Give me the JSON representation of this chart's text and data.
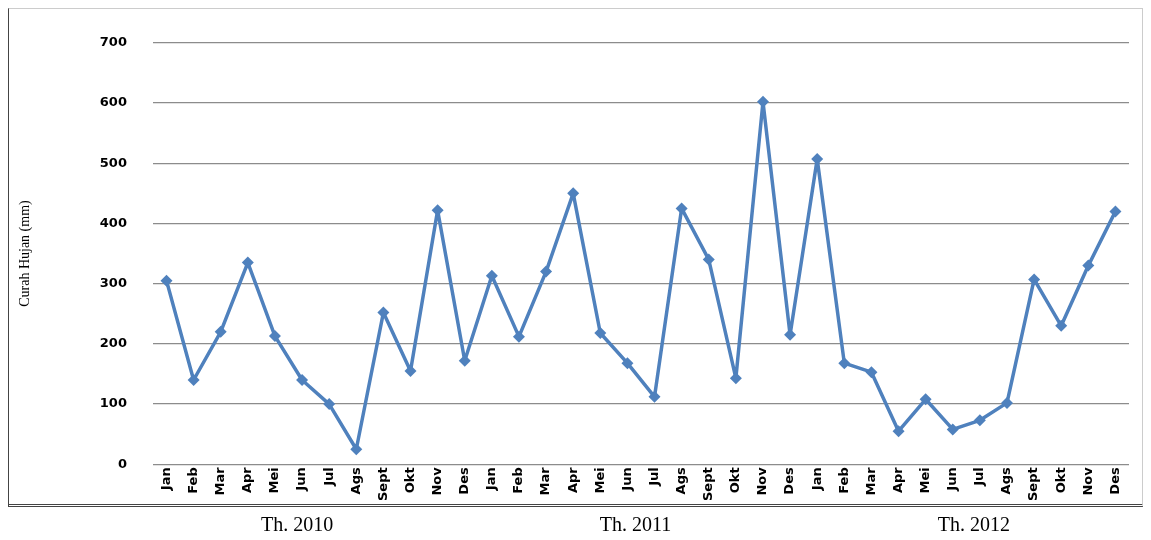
{
  "chart_data": {
    "type": "line",
    "ylabel": "Curah Hujan (mm)",
    "categories": [
      "Jan",
      "Feb",
      "Mar",
      "Apr",
      "Mei",
      "Jun",
      "Jul",
      "Ags",
      "Sept",
      "Okt",
      "Nov",
      "Des",
      "Jan",
      "Feb",
      "Mar",
      "Apr",
      "Mei",
      "Jun",
      "Jul",
      "Ags",
      "Sept",
      "Okt",
      "Nov",
      "Des",
      "Jan",
      "Feb",
      "Mar",
      "Apr",
      "Mei",
      "Jun",
      "Jul",
      "Ags",
      "Sept",
      "Okt",
      "Nov",
      "Des"
    ],
    "series": [
      {
        "color": "#4f81bd",
        "values": [
          305,
          140,
          220,
          335,
          213,
          140,
          100,
          25,
          252,
          155,
          422,
          172,
          313,
          212,
          320,
          450,
          218,
          168,
          112,
          425,
          340,
          143,
          602,
          215,
          507,
          168,
          153,
          55,
          108,
          58,
          73,
          102,
          307,
          230,
          330,
          420
        ]
      }
    ],
    "ylim": [
      0,
      700
    ],
    "yticks": [
      0,
      100,
      200,
      300,
      400,
      500,
      600,
      700
    ],
    "grid": "y",
    "marker": "diamond",
    "line_style": "solid",
    "legend": false,
    "annotations": [
      "Th. 2010",
      "Th. 2011",
      "Th. 2012"
    ]
  }
}
